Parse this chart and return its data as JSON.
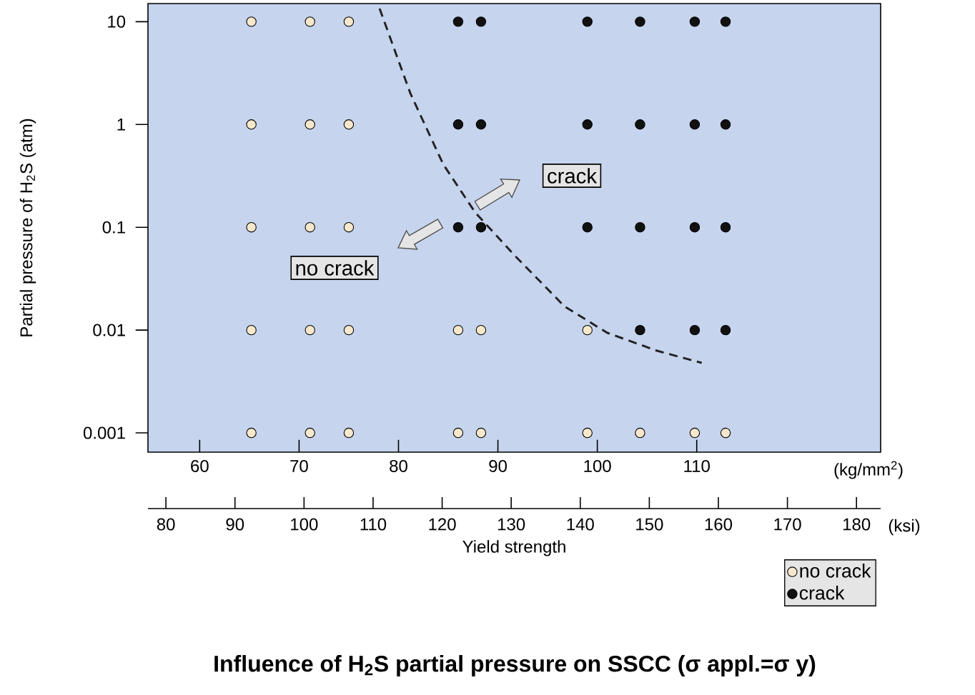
{
  "chart_data": {
    "type": "scatter",
    "title": "Influence of H$_{2}$S partial pressure on SSCC (σ appl.=σ y)",
    "ylabel": "Partial pressure of H$_{2}$S (atm)",
    "xlabel": "Yield strength",
    "xlim": [
      54.8,
      128.5
    ],
    "xticks": [
      60,
      70,
      80,
      90,
      100,
      110
    ],
    "x2lim": [
      77.4,
      183.5
    ],
    "x2ticks": [
      80,
      90,
      100,
      110,
      120,
      130,
      140,
      150,
      160,
      170,
      180
    ],
    "ylim": [
      0.00065,
      15
    ],
    "yticks": [
      0.001,
      0.01,
      0.1,
      1,
      10
    ],
    "log": "y",
    "marker": "circle",
    "legend": "bottom right",
    "grid": false,
    "annotations": [
      "crack",
      "no crack",
      "(kg/mm$^{2}$)",
      "(ksi)"
    ],
    "series": [
      {
        "name": "no crack",
        "color": "#f7e8cc",
        "x": [
          65.2,
          71.1,
          75,
          65.2,
          71.1,
          75,
          65.2,
          71.1,
          75,
          65.2,
          71.1,
          75,
          86,
          88.3,
          99,
          65.2,
          71.1,
          75,
          86,
          88.3,
          99,
          104.3,
          109.8,
          112.9
        ],
        "values": [
          10,
          10,
          10,
          1,
          1,
          1,
          0.1,
          0.1,
          0.1,
          0.01,
          0.01,
          0.01,
          0.01,
          0.01,
          0.01,
          0.001,
          0.001,
          0.001,
          0.001,
          0.001,
          0.001,
          0.001,
          0.001,
          0.001
        ]
      },
      {
        "name": "crack",
        "color": "#111111",
        "x": [
          86,
          88.3,
          99,
          104.3,
          109.8,
          112.9,
          86,
          88.3,
          99,
          104.3,
          109.8,
          112.9,
          86,
          88.3,
          99,
          104.3,
          109.8,
          112.9,
          104.3,
          109.8,
          112.9
        ],
        "values": [
          10,
          10,
          10,
          10,
          10,
          10,
          1,
          1,
          1,
          1,
          1,
          1,
          0.1,
          0.1,
          0.1,
          0.1,
          0.1,
          0.1,
          0.01,
          0.01,
          0.01
        ]
      },
      {
        "type": "line",
        "color": "#222222",
        "line_style": "dashed",
        "marker": "none",
        "x": [
          78.1,
          81.2,
          84.5,
          87.7,
          91.7,
          96.7,
          101.0,
          106.0,
          110.5
        ],
        "values": [
          13.4,
          2.0,
          0.41,
          0.14,
          0.053,
          0.017,
          0.0094,
          0.0063,
          0.0048
        ]
      }
    ]
  }
}
